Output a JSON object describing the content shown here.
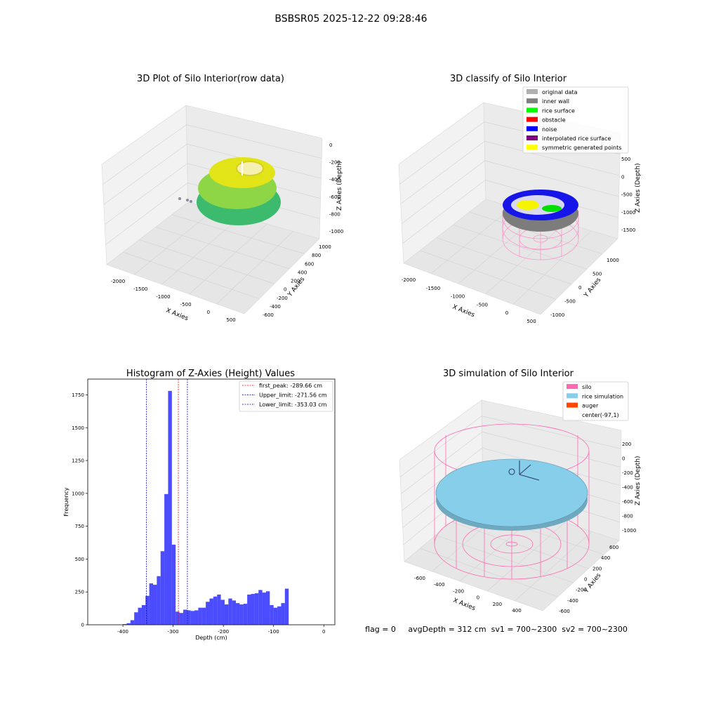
{
  "figure_title": "BSBSR05 2025-12-22 09:28:46",
  "panels": {
    "raw": {
      "title": "3D Plot of Silo Interior(row data)",
      "xlabel": "X Axies",
      "ylabel": "Y Axies",
      "zlabel": "Z Axies (Depth)",
      "x_ticks": [
        "-2000",
        "-1500",
        "-1000",
        "-500",
        "0",
        "500"
      ],
      "y_ticks": [
        "-600",
        "-400",
        "-200",
        "0",
        "200",
        "400",
        "600",
        "800",
        "1000"
      ],
      "z_ticks": [
        "0",
        "-200",
        "-400",
        "-600",
        "-800",
        "-1000"
      ]
    },
    "classify": {
      "title": "3D classify of Silo Interior",
      "xlabel": "X Axies",
      "ylabel": "Y Axies",
      "zlabel": "Z Axies (Depth)",
      "x_ticks": [
        "-2000",
        "-1500",
        "-1000",
        "-500",
        "0",
        "500"
      ],
      "y_ticks": [
        "-1000",
        "-500",
        "0",
        "500",
        "1000"
      ],
      "z_ticks": [
        "500",
        "0",
        "-500",
        "-1000",
        "-1500"
      ],
      "legend": [
        {
          "label": "original data",
          "color": "#b0b0b0"
        },
        {
          "label": "inner wall",
          "color": "#808080"
        },
        {
          "label": "rice surface",
          "color": "#00ff00"
        },
        {
          "label": "obstacle",
          "color": "#ff0000"
        },
        {
          "label": "noise",
          "color": "#0000ff"
        },
        {
          "label": "interpolated rice surface",
          "color": "#800080"
        },
        {
          "label": "symmetric generated points",
          "color": "#ffff00"
        }
      ]
    },
    "simulation": {
      "title": "3D simulation of Silo Interior",
      "xlabel": "X Axies",
      "ylabel": "Y Axies",
      "zlabel": "Z Axies (Depth)",
      "x_ticks": [
        "-600",
        "-400",
        "-200",
        "0",
        "200",
        "400"
      ],
      "y_ticks": [
        "-600",
        "-400",
        "-200",
        "0",
        "200",
        "400",
        "600"
      ],
      "z_ticks": [
        "200",
        "0",
        "-200",
        "-400",
        "-600",
        "-800",
        "-1000"
      ],
      "legend": [
        {
          "label": "silo",
          "color": "#ff69b4"
        },
        {
          "label": "rice simulation",
          "color": "#87ceeb"
        },
        {
          "label": "auger",
          "color": "#ff4500"
        },
        {
          "label": "center(-97,1)",
          "color": ""
        }
      ],
      "status_line": "flag = 0     avgDepth = 312 cm  sv1 = 700~2300  sv2 = 700~2300"
    }
  },
  "chart_data": {
    "type": "bar",
    "title": "Histogram of Z-Axies (Height) Values",
    "xlabel": "Depth (cm)",
    "ylabel": "Frequency",
    "xlim": [
      -470,
      22
    ],
    "ylim": [
      0,
      1870
    ],
    "x_ticks": [
      -400,
      -300,
      -200,
      -100,
      0
    ],
    "y_ticks": [
      0,
      250,
      500,
      750,
      1000,
      1250,
      1500,
      1750
    ],
    "bin_width": 7.5,
    "bin_start": -400,
    "values": [
      5,
      12,
      35,
      95,
      130,
      150,
      220,
      315,
      305,
      370,
      560,
      995,
      1780,
      610,
      100,
      90,
      115,
      110,
      105,
      110,
      130,
      130,
      175,
      200,
      215,
      230,
      190,
      155,
      200,
      185,
      165,
      155,
      160,
      230,
      235,
      240,
      265,
      245,
      255,
      150,
      130,
      140,
      165,
      275
    ],
    "bar_color": "#0000ff",
    "vlines": [
      {
        "label": "first_peak: -289.66 cm",
        "x": -289.66,
        "color": "#ff0000"
      },
      {
        "label": "Upper_limit: -271.56 cm",
        "x": -271.56,
        "color": "#0000aa"
      },
      {
        "label": "Lower_limit: -353.03 cm",
        "x": -353.03,
        "color": "#0000aa"
      }
    ],
    "legend_position": "top-right",
    "grid": false
  }
}
